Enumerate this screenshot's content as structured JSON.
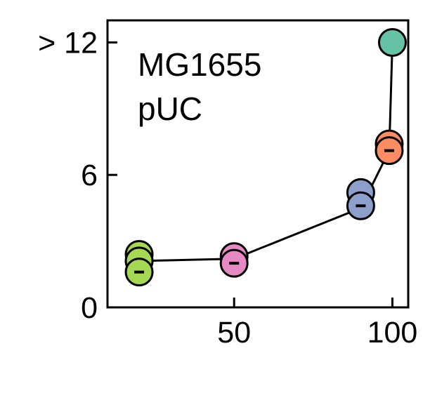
{
  "chart_data": {
    "type": "scatter",
    "annotation": [
      "MG1655",
      "pUC"
    ],
    "xlim": [
      10,
      105
    ],
    "ylim": [
      0,
      13
    ],
    "x_ticks": [
      {
        "value": 50,
        "label": "50"
      },
      {
        "value": 100,
        "label": "100"
      }
    ],
    "y_ticks": [
      {
        "value": 0,
        "label": "0"
      },
      {
        "value": 6,
        "label": "6"
      },
      {
        "value": 12,
        "label": "> 12"
      }
    ],
    "grid": false,
    "line": [
      {
        "x": 20,
        "y": 2.1
      },
      {
        "x": 50,
        "y": 2.2
      },
      {
        "x": 90,
        "y": 4.5
      },
      {
        "x": 99,
        "y": 7.1
      },
      {
        "x": 100,
        "y": 12
      }
    ],
    "points": [
      {
        "x": 20,
        "y": 2.4,
        "color": "#a6d854",
        "mean": false
      },
      {
        "x": 20,
        "y": 2.1,
        "color": "#a6d854",
        "mean": false
      },
      {
        "x": 20,
        "y": 1.6,
        "color": "#a6d854",
        "mean": true
      },
      {
        "x": 50,
        "y": 2.3,
        "color": "#e78ac3",
        "mean": false
      },
      {
        "x": 50,
        "y": 2.0,
        "color": "#e78ac3",
        "mean": true
      },
      {
        "x": 90,
        "y": 5.2,
        "color": "#8da0cb",
        "mean": false
      },
      {
        "x": 90,
        "y": 4.6,
        "color": "#8da0cb",
        "mean": true
      },
      {
        "x": 99,
        "y": 7.4,
        "color": "#fc8d62",
        "mean": false
      },
      {
        "x": 99,
        "y": 7.1,
        "color": "#fc8d62",
        "mean": true
      },
      {
        "x": 100,
        "y": 12,
        "color": "#66c2a5",
        "mean": false
      }
    ]
  }
}
